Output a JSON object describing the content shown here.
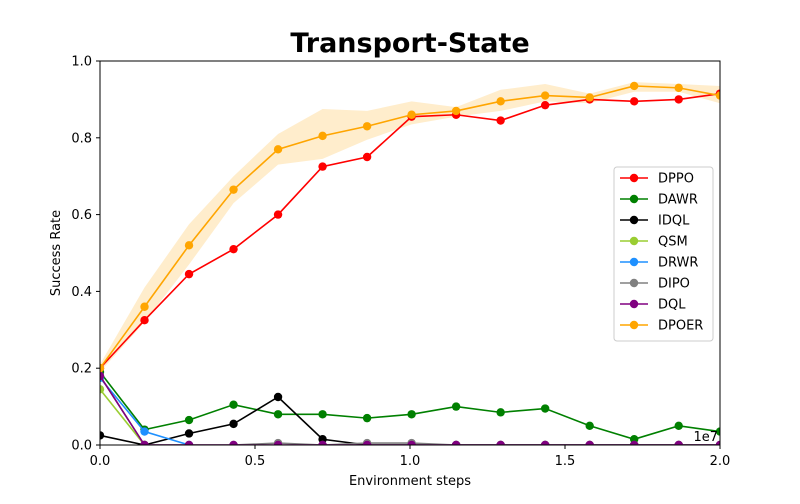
{
  "chart_data": {
    "type": "line",
    "title": "Transport-State",
    "xlabel": "Environment steps",
    "ylabel": "Success Rate",
    "x_offset_text": "1e7",
    "xlim": [
      0.0,
      2.0
    ],
    "ylim": [
      0.0,
      1.0
    ],
    "x_ticks": [
      0.0,
      0.5,
      1.0,
      1.5,
      2.0
    ],
    "x_tick_labels": [
      "0.0",
      "0.5",
      "1.0",
      "1.5",
      "2.0"
    ],
    "y_ticks": [
      0.0,
      0.2,
      0.4,
      0.6,
      0.8,
      1.0
    ],
    "y_tick_labels": [
      "0.0",
      "0.2",
      "0.4",
      "0.6",
      "0.8",
      "1.0"
    ],
    "grid": false,
    "legend_position": "right",
    "series": [
      {
        "name": "DPPO",
        "color": "#ff0000",
        "x": [
          0.0,
          0.1436,
          0.2872,
          0.4308,
          0.5744,
          0.718,
          0.8616,
          1.0052,
          1.1488,
          1.2924,
          1.436,
          1.5796,
          1.7232,
          1.8668,
          2.0
        ],
        "y": [
          0.2,
          0.325,
          0.445,
          0.51,
          0.6,
          0.725,
          0.75,
          0.855,
          0.86,
          0.845,
          0.885,
          0.9,
          0.895,
          0.9,
          0.915
        ]
      },
      {
        "name": "DAWR",
        "color": "#008000",
        "x": [
          0.0,
          0.1436,
          0.2872,
          0.4308,
          0.5744,
          0.718,
          0.8616,
          1.0052,
          1.1488,
          1.2924,
          1.436,
          1.5796,
          1.7232,
          1.8668,
          2.0
        ],
        "y": [
          0.19,
          0.04,
          0.065,
          0.105,
          0.08,
          0.08,
          0.07,
          0.08,
          0.1,
          0.085,
          0.095,
          0.05,
          0.015,
          0.05,
          0.035
        ]
      },
      {
        "name": "IDQL",
        "color": "#000000",
        "x": [
          0.0,
          0.1436,
          0.2872,
          0.4308,
          0.5744,
          0.718,
          0.8616,
          1.0052,
          1.1488,
          1.2924,
          1.436,
          1.5796,
          1.7232,
          1.8668,
          2.0
        ],
        "y": [
          0.025,
          0.0,
          0.03,
          0.055,
          0.125,
          0.015,
          0.0,
          0.0,
          0.0,
          0.0,
          0.0,
          0.0,
          0.0,
          0.0,
          0.0
        ]
      },
      {
        "name": "QSM",
        "color": "#9acd32",
        "x": [
          0.0,
          0.1436
        ],
        "y": [
          0.145,
          0.0
        ]
      },
      {
        "name": "DRWR",
        "color": "#1e90ff",
        "x": [
          0.0,
          0.1436,
          0.2872
        ],
        "y": [
          0.175,
          0.035,
          0.0
        ]
      },
      {
        "name": "DIPO",
        "color": "#808080",
        "x": [
          0.0,
          0.1436,
          0.2872,
          0.4308,
          0.5744,
          0.718,
          0.8616,
          1.0052,
          1.1488,
          1.2924,
          1.436,
          1.5796,
          1.7232,
          1.8668,
          2.0
        ],
        "y": [
          0.18,
          0.0,
          0.0,
          0.0,
          0.005,
          0.0,
          0.005,
          0.005,
          0.0,
          0.0,
          0.0,
          0.0,
          0.0,
          0.0,
          0.0
        ]
      },
      {
        "name": "DQL",
        "color": "#800080",
        "x": [
          0.0,
          0.1436,
          0.2872,
          0.4308,
          0.5744,
          0.718,
          0.8616,
          1.0052,
          1.1488,
          1.2924,
          1.436,
          1.5796,
          1.7232,
          1.8668,
          2.0
        ],
        "y": [
          0.18,
          0.0,
          0.0,
          0.0,
          0.0,
          0.0,
          0.0,
          0.0,
          0.0,
          0.0,
          0.0,
          0.0,
          0.0,
          0.0,
          0.0
        ]
      },
      {
        "name": "DPOER",
        "color": "#ffa500",
        "x": [
          0.0,
          0.1436,
          0.2872,
          0.4308,
          0.5744,
          0.718,
          0.8616,
          1.0052,
          1.1488,
          1.2924,
          1.436,
          1.5796,
          1.7232,
          1.8668,
          2.0
        ],
        "y": [
          0.2,
          0.36,
          0.52,
          0.665,
          0.77,
          0.805,
          0.83,
          0.86,
          0.87,
          0.895,
          0.91,
          0.905,
          0.935,
          0.93,
          0.91
        ],
        "band_lower": [
          0.19,
          0.32,
          0.47,
          0.63,
          0.73,
          0.745,
          0.795,
          0.835,
          0.855,
          0.87,
          0.895,
          0.89,
          0.92,
          0.92,
          0.89
        ],
        "band_upper": [
          0.21,
          0.41,
          0.575,
          0.7,
          0.81,
          0.875,
          0.87,
          0.895,
          0.88,
          0.925,
          0.94,
          0.915,
          0.945,
          0.94,
          0.935
        ]
      }
    ]
  }
}
